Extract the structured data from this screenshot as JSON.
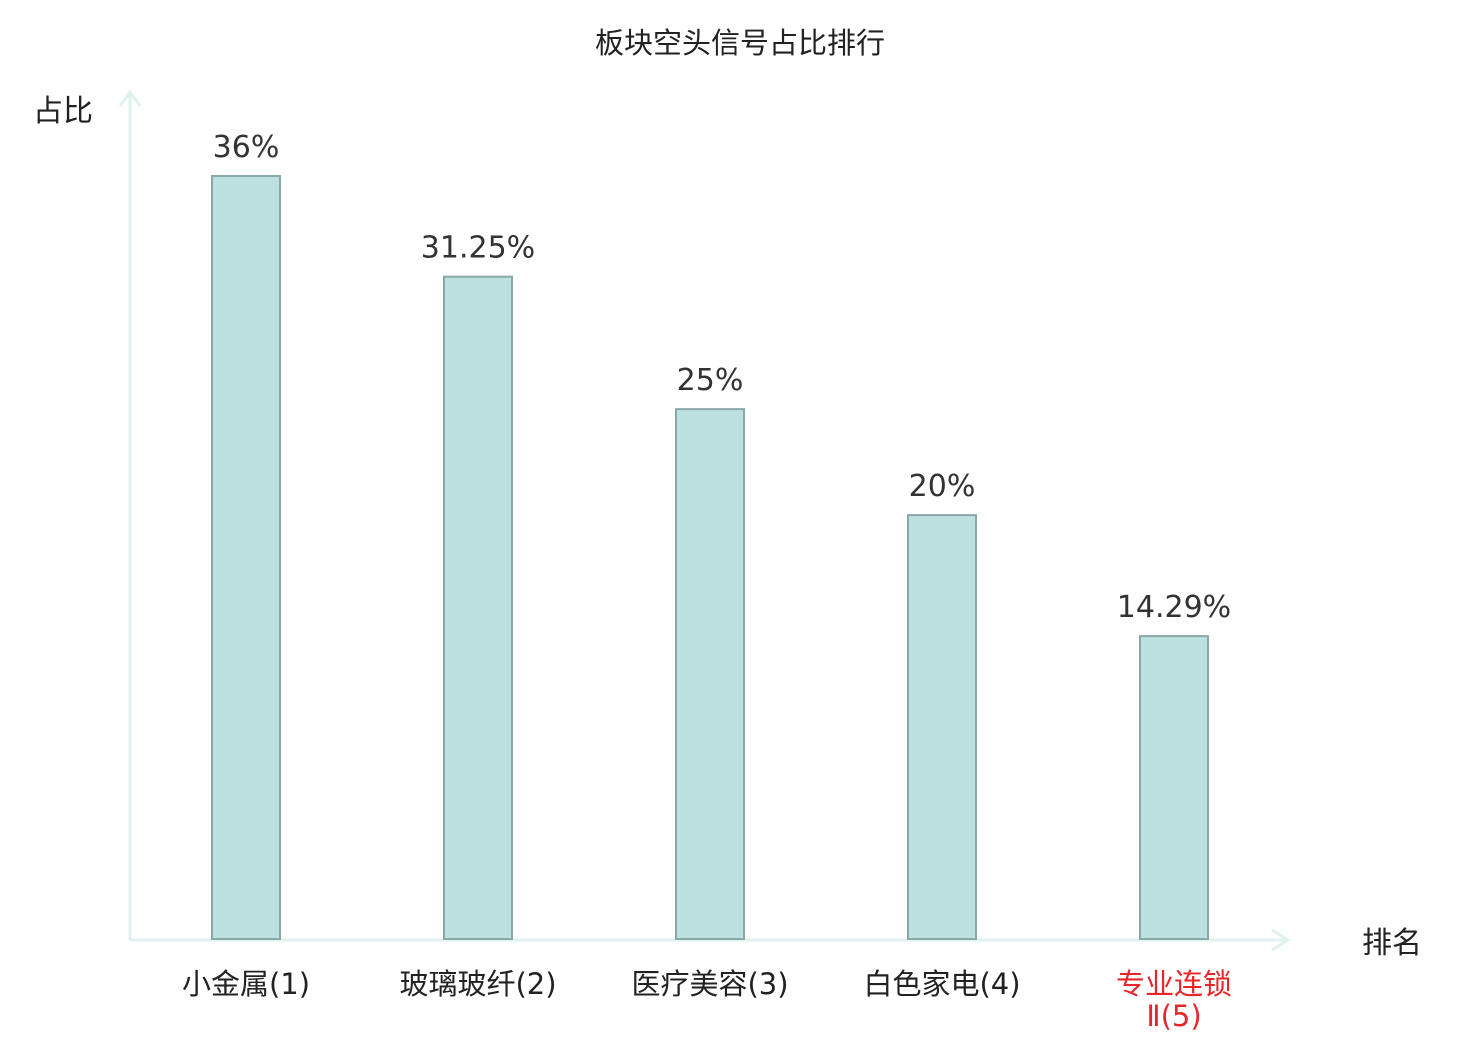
{
  "chart_data": {
    "type": "bar",
    "title": "板块空头信号占比排行",
    "ylabel": "占比",
    "xlabel": "排名",
    "categories": [
      {
        "name": "小金属",
        "rank": "(1)"
      },
      {
        "name": "玻璃玻纤",
        "rank": "(2)"
      },
      {
        "name": "医疗美容",
        "rank": "(3)"
      },
      {
        "name": "白色家电",
        "rank": "(4)"
      },
      {
        "name": "专业连锁",
        "rank": "Ⅱ(5)"
      }
    ],
    "values": [
      36,
      31.25,
      25,
      20,
      14.29
    ],
    "value_labels": [
      "36%",
      "31.25%",
      "25%",
      "20%",
      "14.29%"
    ],
    "ylim": [
      0,
      36
    ],
    "grid": false,
    "colors": {
      "bar_fill": "#bde0e1",
      "bar_stroke": "#8aa8a8",
      "axis": "#e0f2f0",
      "text": "#333333",
      "highlight_label": "#e8262a"
    }
  }
}
